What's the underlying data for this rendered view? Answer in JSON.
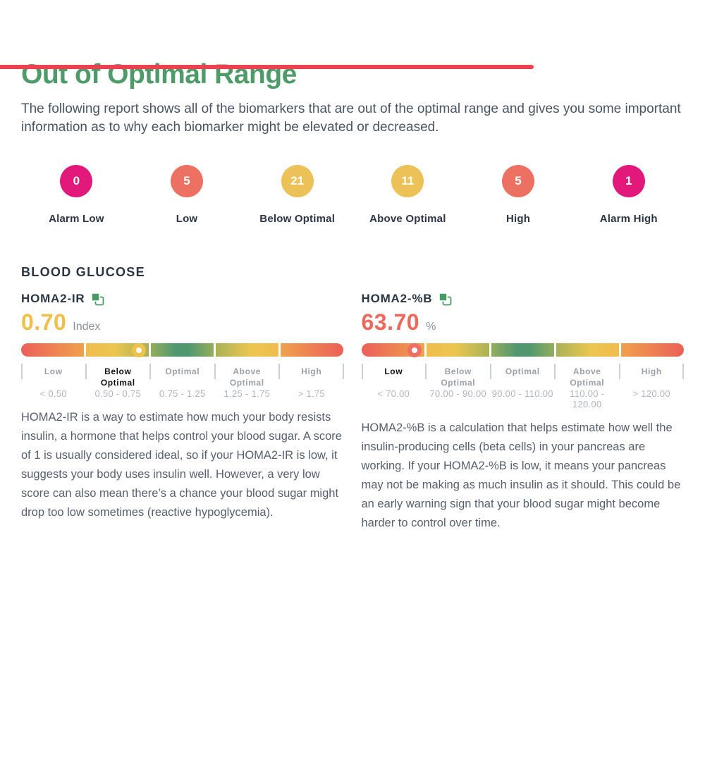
{
  "accent": {
    "bar_color": "#ee4150"
  },
  "header": {
    "title": "Out of Optimal Range",
    "intro": "The following report shows all of the biomarkers that are out of the optimal range and gives you some important information as to why each biomarker might be elevated or decreased."
  },
  "summary": [
    {
      "count": "0",
      "label": "Alarm Low",
      "color": "#e2197a"
    },
    {
      "count": "5",
      "label": "Low",
      "color": "#ec7162"
    },
    {
      "count": "21",
      "label": "Below Optimal",
      "color": "#ecc258"
    },
    {
      "count": "11",
      "label": "Above Optimal",
      "color": "#ecc258"
    },
    {
      "count": "5",
      "label": "High",
      "color": "#ec7162"
    },
    {
      "count": "1",
      "label": "Alarm High",
      "color": "#e2197a"
    }
  ],
  "section_title": "BLOOD GLUCOSE",
  "biomarkers": [
    {
      "name": "HOMA2-IR",
      "value": "0.70",
      "unit": "Index",
      "value_color": "#efbf4b",
      "marker_color": "#f1c14d",
      "marker_left_pct": 36.5,
      "active_zone_index": 1,
      "zones": [
        {
          "label": "Low",
          "range": "< 0.50"
        },
        {
          "label": "Below Optimal",
          "range": "0.50 - 0.75"
        },
        {
          "label": "Optimal",
          "range": "0.75 - 1.25"
        },
        {
          "label": "Above Optimal",
          "range": "1.25 - 1.75"
        },
        {
          "label": "High",
          "range": "> 1.75"
        }
      ],
      "description": "HOMA2-IR is a way to estimate how much your body resists insulin, a hormone that helps control your blood sugar. A score of 1 is usually considered ideal, so if your HOMA2-IR is low, it suggests your body uses insulin well. However, a very low score can also mean there’s a chance your blood sugar might drop too low sometimes (reactive hypoglycemia)."
    },
    {
      "name": "HOMA2-%B",
      "value": "63.70",
      "unit": "%",
      "value_color": "#ed685c",
      "marker_color": "#ee6f60",
      "marker_left_pct": 16.5,
      "active_zone_index": 0,
      "zones": [
        {
          "label": "Low",
          "range": "< 70.00"
        },
        {
          "label": "Below Optimal",
          "range": "70.00 - 90.00"
        },
        {
          "label": "Optimal",
          "range": "90.00 - 110.00"
        },
        {
          "label": "Above Optimal",
          "range": "110.00 - 120.00"
        },
        {
          "label": "High",
          "range": "> 120.00"
        }
      ],
      "description": "HOMA2-%B is a calculation that helps estimate how well the insulin-producing cells (beta cells) in your pancreas are working. If your HOMA2-%B is low, it means your pancreas may not be making as much insulin as it should. This could be an early warning sign that your blood sugar might become harder to control over time."
    }
  ]
}
